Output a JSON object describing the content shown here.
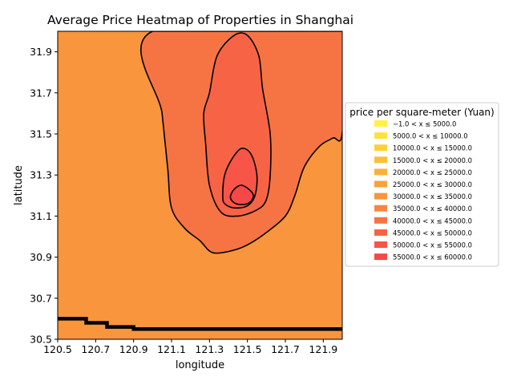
{
  "chart_data": {
    "type": "heatmap",
    "subtype": "filled-contour",
    "title": "Average Price Heatmap of Properties in Shanghai",
    "xlabel": "longitude",
    "ylabel": "latitude",
    "xlim": [
      120.5,
      122.0
    ],
    "ylim": [
      30.5,
      32.0
    ],
    "xticks": [
      "120.5",
      "120.7",
      "120.9",
      "121.1",
      "121.3",
      "121.5",
      "121.7",
      "121.9"
    ],
    "yticks": [
      "30.5",
      "30.7",
      "30.9",
      "31.1",
      "31.3",
      "31.5",
      "31.7",
      "31.9"
    ],
    "grid": false,
    "legend_title": "price per square-meter (Yuan)",
    "legend_position": "right",
    "levels": [
      {
        "label": "−1.0 < x ≤ 5000.0",
        "color": "#fff146"
      },
      {
        "label": "5000.0 < x ≤ 10000.0",
        "color": "#ffe13f"
      },
      {
        "label": "10000.0 < x ≤ 15000.0",
        "color": "#fdd03a"
      },
      {
        "label": "15000.0 < x ≤ 20000.0",
        "color": "#fcbf38"
      },
      {
        "label": "20000.0 < x ≤ 25000.0",
        "color": "#fbb038"
      },
      {
        "label": "25000.0 < x ≤ 30000.0",
        "color": "#f9a23a"
      },
      {
        "label": "30000.0 < x ≤ 35000.0",
        "color": "#f8953d"
      },
      {
        "label": "35000.0 < x ≤ 40000.0",
        "color": "#f78540"
      },
      {
        "label": "40000.0 < x ≤ 45000.0",
        "color": "#f67443"
      },
      {
        "label": "45000.0 < x ≤ 50000.0",
        "color": "#f66445"
      },
      {
        "label": "50000.0 < x ≤ 55000.0",
        "color": "#f65547"
      },
      {
        "label": "55000.0 < x ≤ 60000.0",
        "color": "#f54848"
      }
    ],
    "regions": [
      {
        "name": "low-price-strip-south",
        "level": "-1.0 < x <= 5000.0",
        "boundary": [
          [
            120.5,
            30.5
          ],
          [
            120.5,
            30.6
          ],
          [
            120.55,
            30.6
          ],
          [
            120.65,
            30.58
          ],
          [
            120.76,
            30.56
          ],
          [
            120.9,
            30.55
          ],
          [
            122.0,
            30.55
          ],
          [
            122.0,
            30.5
          ]
        ]
      },
      {
        "name": "base-region",
        "level": "30000.0 < x <= 35000.0",
        "boundary": [
          [
            120.5,
            30.6
          ],
          [
            120.5,
            32.0
          ],
          [
            122.0,
            32.0
          ],
          [
            122.0,
            30.55
          ]
        ]
      },
      {
        "name": "contour-40000",
        "level": "40000.0 < x <= 45000.0",
        "boundary": [
          [
            121.0,
            32.0
          ],
          [
            121.05,
            31.6
          ],
          [
            121.08,
            31.33
          ],
          [
            121.1,
            31.14
          ],
          [
            121.17,
            31.04
          ],
          [
            121.25,
            30.98
          ],
          [
            121.3,
            30.93
          ],
          [
            121.35,
            30.92
          ],
          [
            121.45,
            30.94
          ],
          [
            121.52,
            30.97
          ],
          [
            121.6,
            31.02
          ],
          [
            121.7,
            31.1
          ],
          [
            121.75,
            31.2
          ],
          [
            121.8,
            31.34
          ],
          [
            121.88,
            31.44
          ],
          [
            121.95,
            31.48
          ],
          [
            122.0,
            31.51
          ],
          [
            122.0,
            32.0
          ]
        ]
      },
      {
        "name": "contour-45000",
        "level": "45000.0 < x <= 50000.0",
        "boundary": [
          [
            121.3,
            31.7
          ],
          [
            121.34,
            31.88
          ],
          [
            121.43,
            31.98
          ],
          [
            121.5,
            31.98
          ],
          [
            121.56,
            31.88
          ],
          [
            121.58,
            31.72
          ],
          [
            121.62,
            31.5
          ],
          [
            121.62,
            31.3
          ],
          [
            121.6,
            31.18
          ],
          [
            121.55,
            31.13
          ],
          [
            121.45,
            31.1
          ],
          [
            121.36,
            31.12
          ],
          [
            121.3,
            31.25
          ],
          [
            121.28,
            31.45
          ],
          [
            121.27,
            31.6
          ]
        ]
      },
      {
        "name": "contour-50000",
        "level": "50000.0 < x <= 55000.0",
        "boundary": [
          [
            121.37,
            31.2
          ],
          [
            121.38,
            31.3
          ],
          [
            121.42,
            31.38
          ],
          [
            121.47,
            31.43
          ],
          [
            121.52,
            31.4
          ],
          [
            121.55,
            31.3
          ],
          [
            121.54,
            31.2
          ],
          [
            121.5,
            31.15
          ],
          [
            121.43,
            31.14
          ],
          [
            121.38,
            31.16
          ]
        ]
      },
      {
        "name": "contour-55000-peak",
        "level": "55000.0 < x <= 60000.0",
        "boundary": [
          [
            121.41,
            31.19
          ],
          [
            121.43,
            31.23
          ],
          [
            121.47,
            31.25
          ],
          [
            121.52,
            31.22
          ],
          [
            121.53,
            31.19
          ],
          [
            121.5,
            31.16
          ],
          [
            121.44,
            31.16
          ]
        ]
      }
    ]
  }
}
